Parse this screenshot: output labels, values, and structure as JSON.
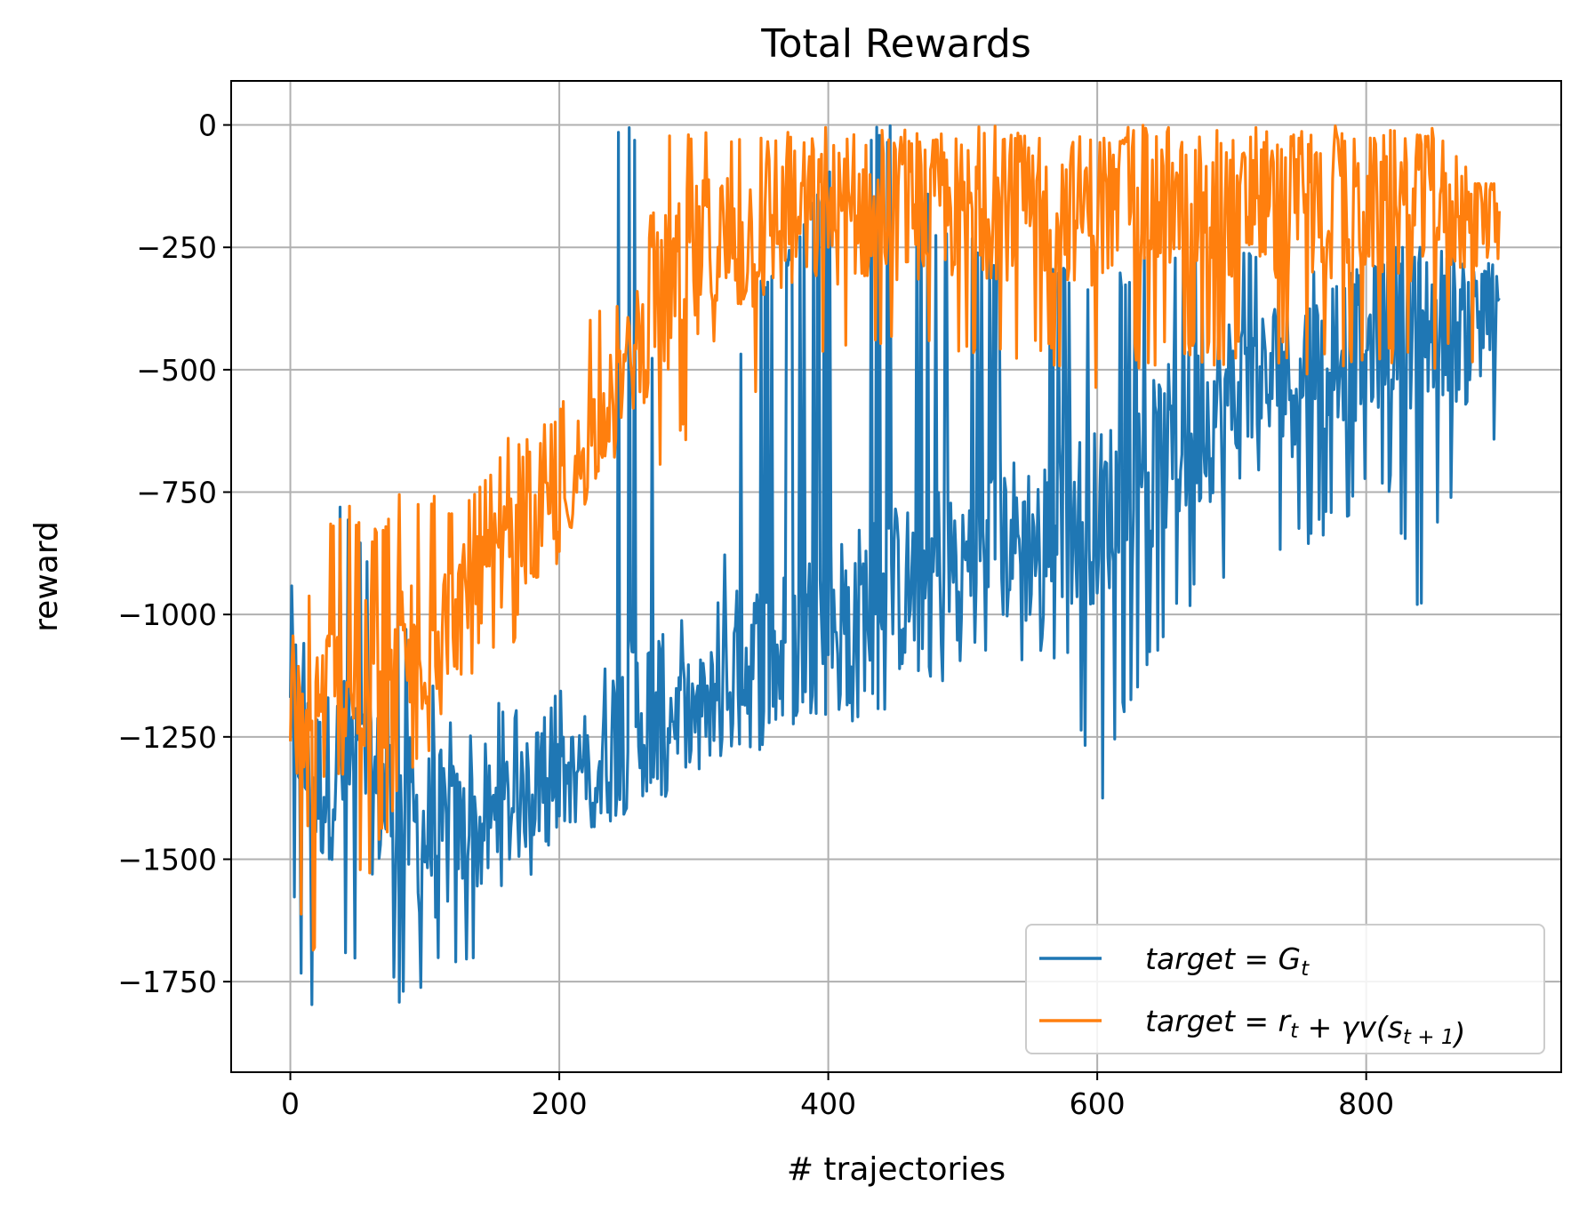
{
  "chart_data": {
    "type": "line",
    "title": "Total Rewards",
    "xlabel": "# trajectories",
    "ylabel": "reward",
    "xlim": [
      -44,
      945
    ],
    "ylim": [
      -1935,
      90
    ],
    "xticks": [
      0,
      200,
      400,
      600,
      800
    ],
    "xtick_labels": [
      "0",
      "200",
      "400",
      "600",
      "800"
    ],
    "yticks": [
      0,
      -250,
      -500,
      -750,
      -1000,
      -1250,
      -1500,
      -1750
    ],
    "ytick_labels": [
      "0",
      "−250",
      "−500",
      "−750",
      "−1000",
      "−1250",
      "−1500",
      "−1750"
    ],
    "grid": true,
    "legend_position": "lower-right",
    "n_points": 900,
    "series": [
      {
        "name": "target = G_t",
        "legend": {
          "main": "target = G",
          "sub": "t",
          "tail": ""
        },
        "color": "#1f77b4",
        "note": "noisy per-trajectory curve; sampled at anchor points (x, lower envelope, upper envelope)",
        "anchors_x": [
          0,
          10,
          20,
          40,
          60,
          80,
          100,
          120,
          140,
          160,
          180,
          200,
          220,
          240,
          260,
          280,
          300,
          320,
          340,
          360,
          380,
          400,
          420,
          440,
          460,
          480,
          500,
          520,
          540,
          560,
          580,
          600,
          620,
          640,
          660,
          680,
          700,
          720,
          740,
          760,
          780,
          800,
          820,
          840,
          860,
          880,
          899
        ],
        "anchors_low": [
          -1540,
          -1840,
          -1800,
          -1720,
          -1760,
          -1800,
          -1790,
          -1720,
          -1700,
          -1650,
          -1530,
          -1480,
          -1440,
          -1420,
          -1400,
          -1380,
          -1340,
          -1320,
          -1300,
          -1280,
          -1240,
          -1220,
          -1220,
          -1200,
          -1180,
          -1160,
          -1150,
          -1120,
          -1100,
          -1100,
          -1120,
          -1450,
          -1200,
          -1100,
          -1000,
          -980,
          -960,
          -900,
          -880,
          -860,
          -820,
          -780,
          -760,
          -1030,
          -760,
          -1110,
          -540
        ],
        "anchors_high": [
          -910,
          -1040,
          -750,
          -760,
          -900,
          -950,
          -1100,
          -1200,
          -1250,
          -1150,
          -1250,
          -1150,
          -1100,
          0,
          0,
          -1000,
          -1000,
          -950,
          -300,
          -300,
          -200,
          -100,
          0,
          0,
          0,
          -200,
          -200,
          -250,
          -250,
          -260,
          -300,
          -300,
          -300,
          -250,
          -250,
          -250,
          -250,
          -250,
          -250,
          -300,
          -300,
          -250,
          -250,
          -250,
          -260,
          -300,
          -250
        ],
        "anchors_mid": [
          -1100,
          -1300,
          -1350,
          -1300,
          -1350,
          -1400,
          -1450,
          -1450,
          -1450,
          -1400,
          -1380,
          -1350,
          -1300,
          -1250,
          -1200,
          -1200,
          -1200,
          -1150,
          -1100,
          -1100,
          -1050,
          -1000,
          -1000,
          -950,
          -950,
          -900,
          -900,
          -850,
          -850,
          -850,
          -800,
          -800,
          -750,
          -700,
          -650,
          -600,
          -550,
          -550,
          -500,
          -500,
          -450,
          -450,
          -400,
          -400,
          -400,
          -400,
          -400
        ]
      },
      {
        "name": "target = r_t + γv(s_{t+1})",
        "legend": {
          "main": "target = r",
          "sub": "t",
          "tail": " + γv(s",
          "sub2": "t + 1",
          "tail2": ")"
        },
        "color": "#ff7f0e",
        "note": "noisy per-trajectory curve; sampled at anchor points (x, lower envelope, upper envelope)",
        "anchors_x": [
          0,
          10,
          20,
          40,
          60,
          80,
          100,
          120,
          140,
          160,
          180,
          200,
          220,
          240,
          260,
          280,
          300,
          320,
          340,
          360,
          380,
          400,
          420,
          440,
          460,
          480,
          500,
          520,
          540,
          560,
          580,
          600,
          620,
          640,
          660,
          680,
          700,
          720,
          740,
          760,
          780,
          800,
          820,
          840,
          860,
          880,
          899
        ],
        "anchors_low": [
          -1460,
          -1700,
          -1700,
          -1600,
          -1550,
          -1400,
          -1300,
          -1200,
          -1100,
          -1100,
          -1000,
          -900,
          -800,
          -700,
          -700,
          -700,
          -650,
          -600,
          -550,
          -550,
          -500,
          -500,
          -500,
          -480,
          -500,
          -500,
          -500,
          -480,
          -500,
          -500,
          -500,
          -550,
          -500,
          -500,
          -500,
          -500,
          -500,
          -500,
          -500,
          -520,
          -500,
          -500,
          -500,
          -500,
          -500,
          -540,
          -500
        ],
        "anchors_high": [
          -1050,
          -1000,
          -830,
          -760,
          -830,
          -750,
          -750,
          -760,
          -730,
          -640,
          -640,
          -560,
          -380,
          -380,
          -300,
          0,
          0,
          0,
          0,
          0,
          0,
          0,
          0,
          0,
          0,
          0,
          0,
          0,
          0,
          0,
          0,
          0,
          0,
          0,
          0,
          0,
          0,
          0,
          0,
          0,
          0,
          0,
          0,
          0,
          0,
          -120,
          -120
        ],
        "anchors_mid": [
          -1200,
          -1300,
          -1200,
          -1150,
          -1150,
          -1100,
          -1050,
          -1000,
          -950,
          -900,
          -850,
          -800,
          -650,
          -550,
          -450,
          -350,
          -300,
          -250,
          -230,
          -200,
          -200,
          -180,
          -180,
          -170,
          -170,
          -170,
          -170,
          -170,
          -170,
          -170,
          -170,
          -170,
          -170,
          -170,
          -170,
          -170,
          -170,
          -170,
          -170,
          -170,
          -170,
          -170,
          -170,
          -170,
          -170,
          -170,
          -170
        ]
      }
    ]
  }
}
